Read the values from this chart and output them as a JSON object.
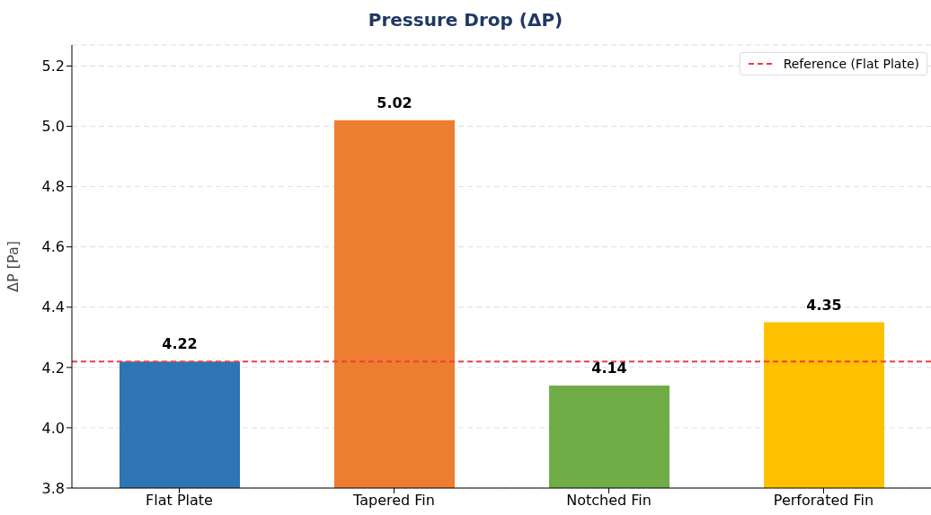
{
  "chart_data": {
    "type": "bar",
    "title": "Pressure Drop (ΔP)",
    "ylabel": "ΔP  [Pa]",
    "categories": [
      "Flat Plate",
      "Tapered Fin",
      "Notched Fin",
      "Perforated Fin"
    ],
    "values": [
      4.22,
      5.02,
      4.14,
      4.35
    ],
    "colors": [
      "#2e75b6",
      "#ed7d31",
      "#70ad47",
      "#ffc000"
    ],
    "ylim": [
      3.8,
      5.27
    ],
    "yticks": [
      3.8,
      {
        "value": 4,
        "label": "4.0"
      },
      4.2,
      4.4,
      4.6,
      4.8,
      {
        "value": 5,
        "label": "5.0"
      },
      5.2
    ],
    "grid": "y",
    "data_labels": true,
    "legend": "top right",
    "ref_lines": [
      {
        "axis": "y",
        "value": 4.22,
        "label": "Reference (Flat Plate)",
        "color": "#f03c3c",
        "line_style": "dashed"
      }
    ]
  }
}
